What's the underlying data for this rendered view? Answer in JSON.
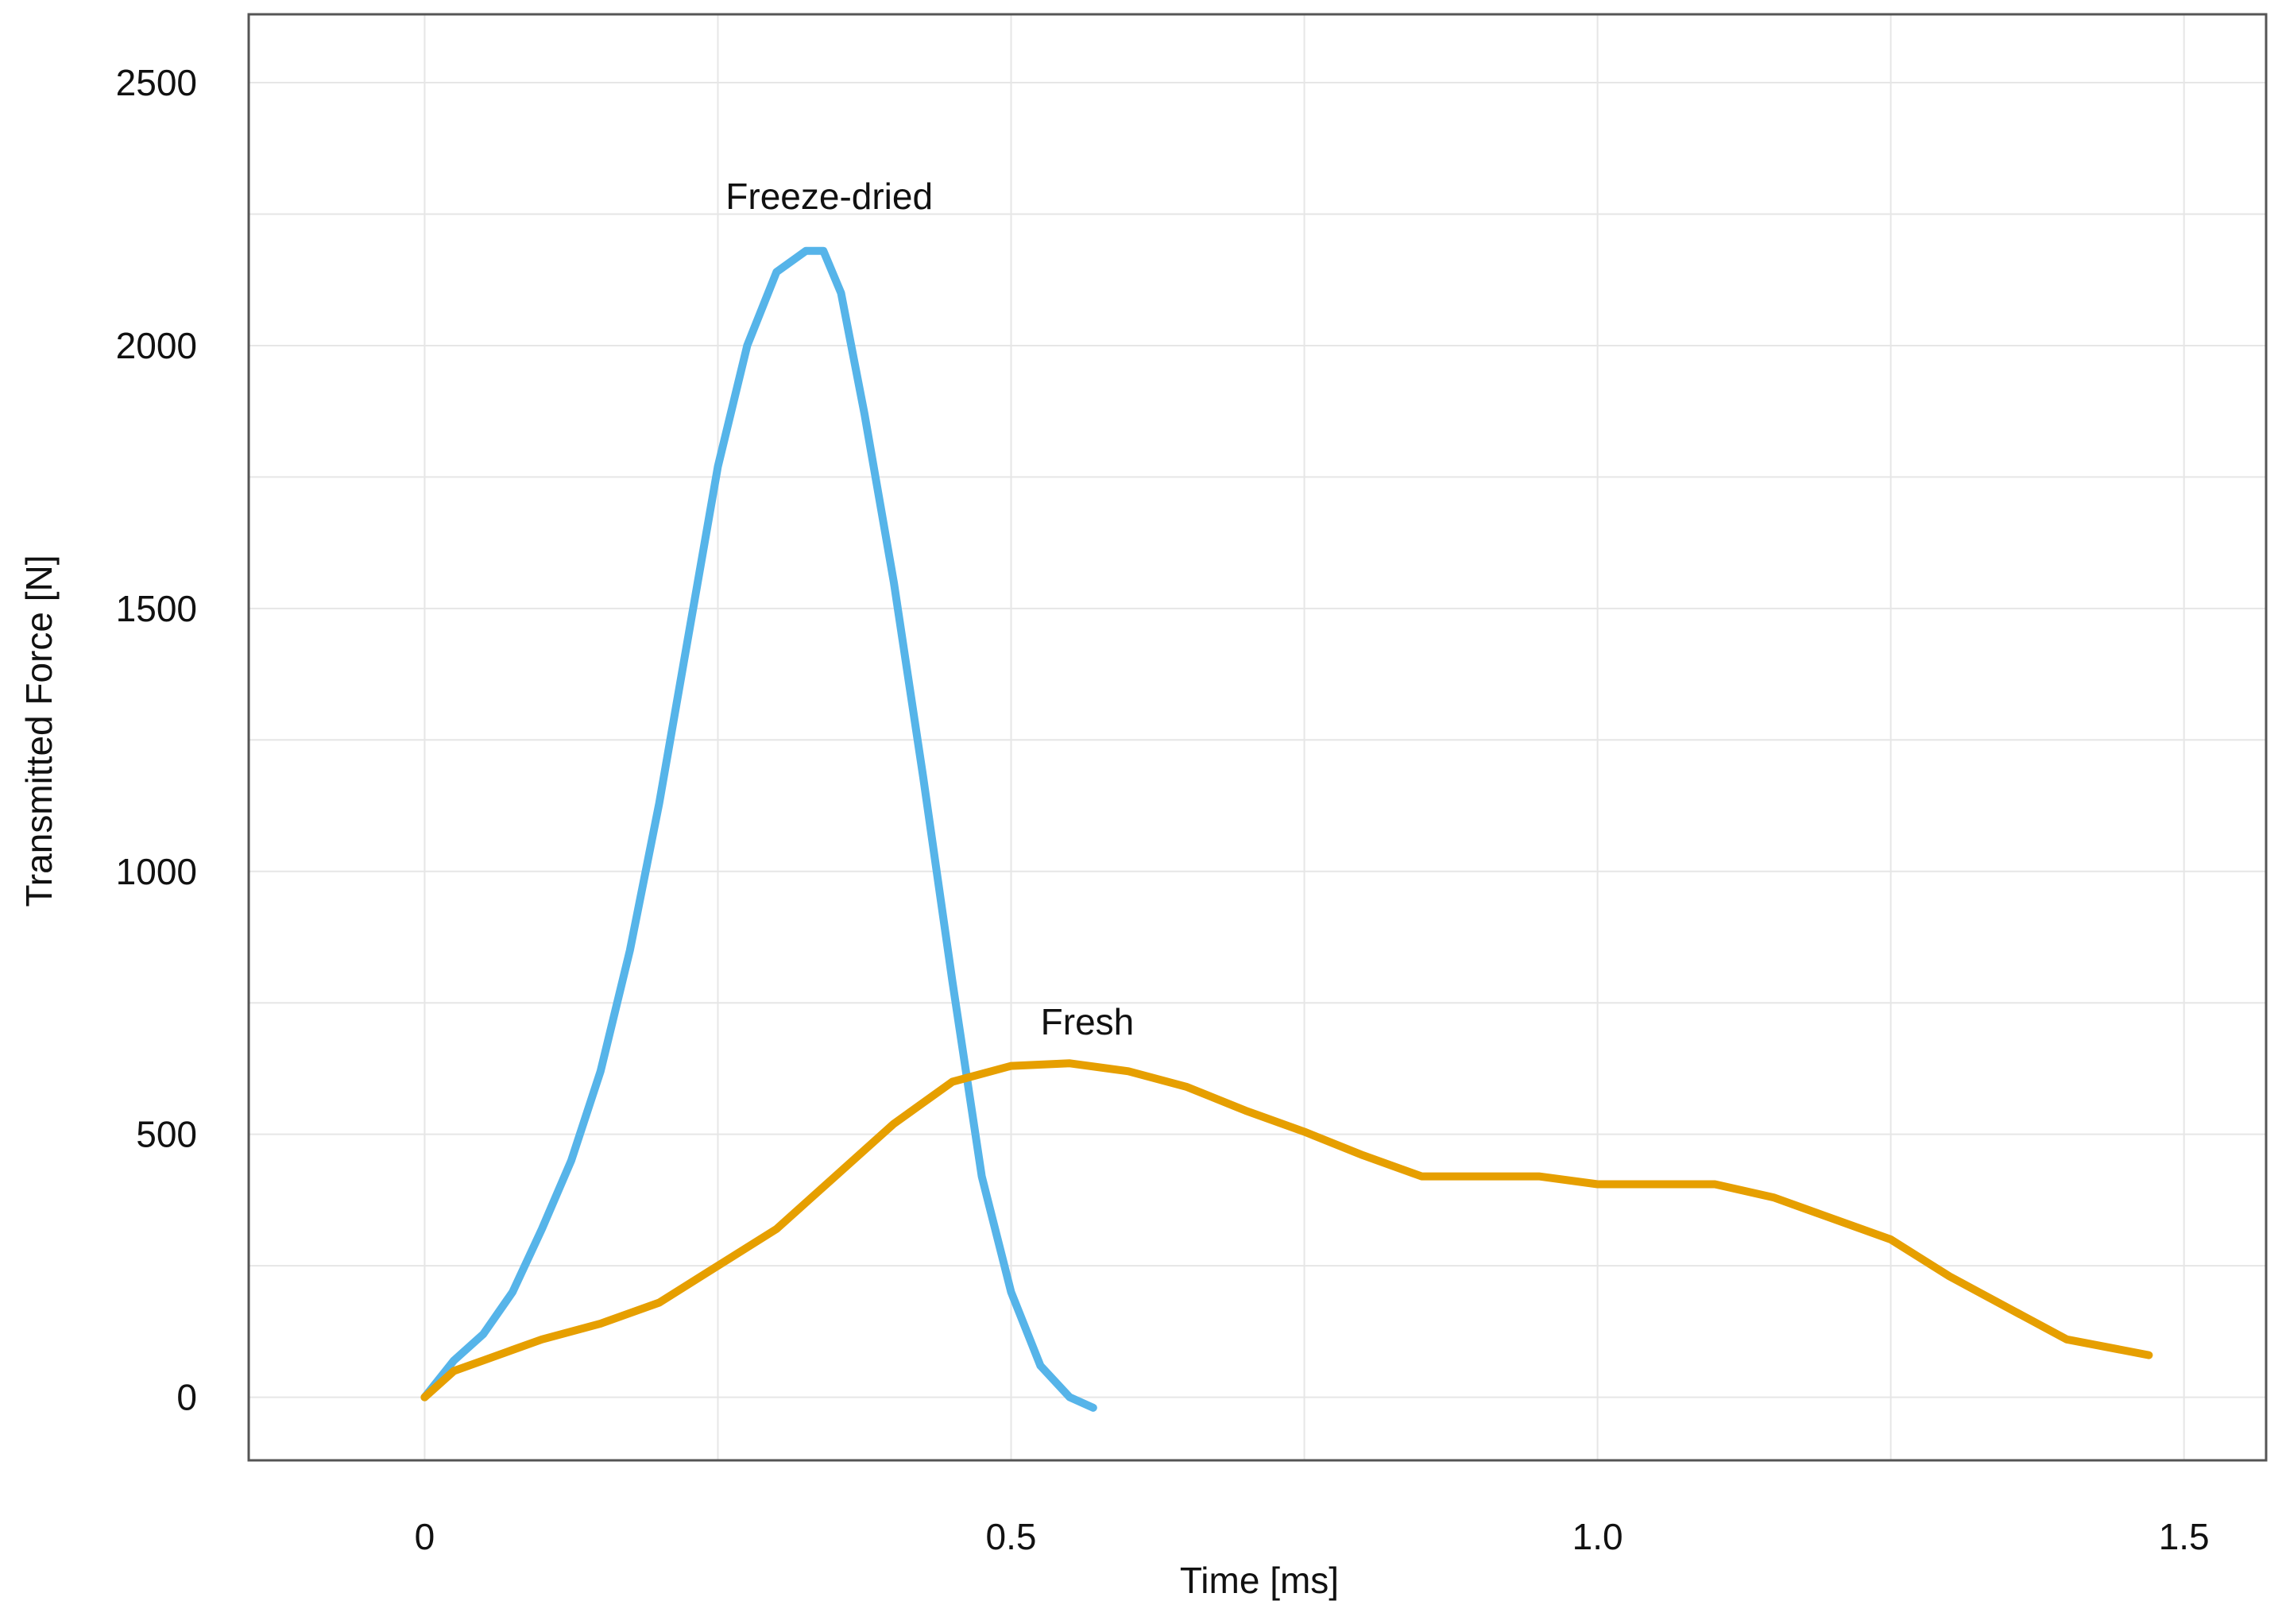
{
  "chart_data": {
    "type": "line",
    "xlabel": "Time [ms]",
    "ylabel": "Transmitted Force [N]",
    "xlim": [
      -0.15,
      1.57
    ],
    "ylim": [
      -120,
      2630
    ],
    "x_ticks": [
      0,
      0.5,
      1.0,
      1.5
    ],
    "x_tick_labels": [
      "0",
      "0.5",
      "1.0",
      "1.5"
    ],
    "y_ticks": [
      0,
      500,
      1000,
      1500,
      2000,
      2500
    ],
    "y_tick_labels": [
      "0",
      "500",
      "1000",
      "1500",
      "2000",
      "2500"
    ],
    "minor_x_grid": [
      0.25,
      0.75,
      1.25
    ],
    "minor_y_grid": [
      250,
      750,
      1250,
      1750,
      2250
    ],
    "grid": true,
    "legend": "none",
    "series": [
      {
        "name": "Freeze-dried",
        "color": "#56b4e9",
        "x": [
          0,
          0.025,
          0.05,
          0.075,
          0.1,
          0.125,
          0.15,
          0.175,
          0.2,
          0.225,
          0.25,
          0.275,
          0.3,
          0.325,
          0.34,
          0.355,
          0.375,
          0.4,
          0.425,
          0.45,
          0.475,
          0.5,
          0.525,
          0.55,
          0.57
        ],
        "y": [
          0,
          70,
          120,
          200,
          320,
          450,
          620,
          850,
          1130,
          1450,
          1770,
          2000,
          2140,
          2180,
          2180,
          2100,
          1870,
          1550,
          1180,
          790,
          420,
          200,
          60,
          0,
          -20
        ]
      },
      {
        "name": "Fresh",
        "color": "#e69f00",
        "x": [
          0,
          0.025,
          0.05,
          0.075,
          0.1,
          0.15,
          0.2,
          0.25,
          0.3,
          0.35,
          0.4,
          0.45,
          0.5,
          0.55,
          0.6,
          0.65,
          0.7,
          0.75,
          0.8,
          0.85,
          0.9,
          0.95,
          1.0,
          1.05,
          1.1,
          1.15,
          1.2,
          1.25,
          1.3,
          1.35,
          1.4,
          1.47
        ],
        "y": [
          0,
          50,
          70,
          90,
          110,
          140,
          180,
          250,
          320,
          420,
          520,
          600,
          630,
          635,
          620,
          590,
          545,
          505,
          460,
          420,
          420,
          420,
          405,
          405,
          405,
          380,
          340,
          300,
          230,
          170,
          110,
          80
        ]
      }
    ],
    "annotations": [
      {
        "text": "Freeze-dried",
        "x": 0.345,
        "y": 2260
      },
      {
        "text": "Fresh",
        "x": 0.565,
        "y": 690
      }
    ]
  }
}
